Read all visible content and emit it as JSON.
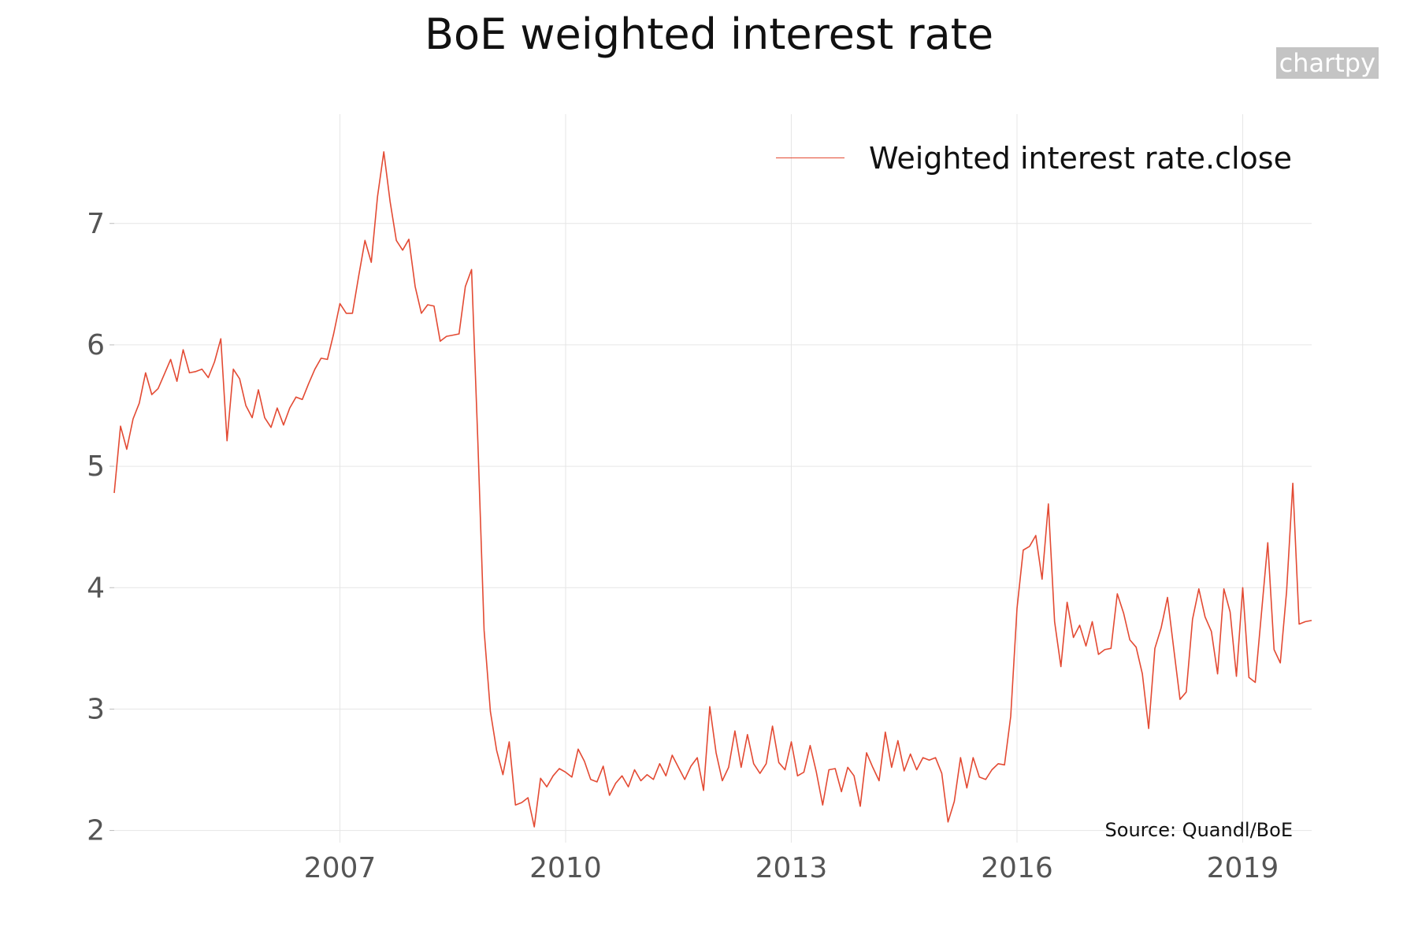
{
  "page": {
    "title": "BoE weighted interest rate",
    "watermark": "chartpy",
    "source": "Source: Quandl/BoE"
  },
  "colors": {
    "series": "#e34a33",
    "grid": "#e6e6e6",
    "axis_text": "#555555",
    "watermark_bg": "#c4c4c4"
  },
  "chart_data": {
    "type": "line",
    "title": "BoE weighted interest rate",
    "xlabel": "",
    "ylabel": "",
    "legend_position": "top-right",
    "grid": true,
    "x_ticks": [
      "2007",
      "2010",
      "2013",
      "2016",
      "2019"
    ],
    "y_ticks": [
      2,
      3,
      4,
      5,
      6,
      7
    ],
    "xlim": [
      "2004-01",
      "2019-12"
    ],
    "ylim": [
      1.9,
      7.9
    ],
    "series": [
      {
        "name": "Weighted interest rate.close",
        "color": "#e34a33",
        "x": [
          "2004-01",
          "2004-02",
          "2004-03",
          "2004-04",
          "2004-05",
          "2004-06",
          "2004-07",
          "2004-08",
          "2004-09",
          "2004-10",
          "2004-11",
          "2004-12",
          "2005-01",
          "2005-02",
          "2005-03",
          "2005-04",
          "2005-05",
          "2005-06",
          "2005-07",
          "2005-08",
          "2005-09",
          "2005-10",
          "2005-11",
          "2005-12",
          "2006-01",
          "2006-02",
          "2006-03",
          "2006-04",
          "2006-05",
          "2006-06",
          "2006-07",
          "2006-08",
          "2006-09",
          "2006-10",
          "2006-11",
          "2006-12",
          "2007-01",
          "2007-02",
          "2007-03",
          "2007-04",
          "2007-05",
          "2007-06",
          "2007-07",
          "2007-08",
          "2007-09",
          "2007-10",
          "2007-11",
          "2007-12",
          "2008-01",
          "2008-02",
          "2008-03",
          "2008-04",
          "2008-05",
          "2008-06",
          "2008-07",
          "2008-08",
          "2008-09",
          "2008-10",
          "2008-11",
          "2008-12",
          "2009-01",
          "2009-02",
          "2009-03",
          "2009-04",
          "2009-05",
          "2009-06",
          "2009-07",
          "2009-08",
          "2009-09",
          "2009-10",
          "2009-11",
          "2009-12",
          "2010-01",
          "2010-02",
          "2010-03",
          "2010-04",
          "2010-05",
          "2010-06",
          "2010-07",
          "2010-08",
          "2010-09",
          "2010-10",
          "2010-11",
          "2010-12",
          "2011-01",
          "2011-02",
          "2011-03",
          "2011-04",
          "2011-05",
          "2011-06",
          "2011-07",
          "2011-08",
          "2011-09",
          "2011-10",
          "2011-11",
          "2011-12",
          "2012-01",
          "2012-02",
          "2012-03",
          "2012-04",
          "2012-05",
          "2012-06",
          "2012-07",
          "2012-08",
          "2012-09",
          "2012-10",
          "2012-11",
          "2012-12",
          "2013-01",
          "2013-02",
          "2013-03",
          "2013-04",
          "2013-05",
          "2013-06",
          "2013-07",
          "2013-08",
          "2013-09",
          "2013-10",
          "2013-11",
          "2013-12",
          "2014-01",
          "2014-02",
          "2014-03",
          "2014-04",
          "2014-05",
          "2014-06",
          "2014-07",
          "2014-08",
          "2014-09",
          "2014-10",
          "2014-11",
          "2014-12",
          "2015-01",
          "2015-02",
          "2015-03",
          "2015-04",
          "2015-05",
          "2015-06",
          "2015-07",
          "2015-08",
          "2015-09",
          "2015-10",
          "2015-11",
          "2015-12",
          "2016-01",
          "2016-02",
          "2016-03",
          "2016-04",
          "2016-05",
          "2016-06",
          "2016-07",
          "2016-08",
          "2016-09",
          "2016-10",
          "2016-11",
          "2016-12",
          "2017-01",
          "2017-02",
          "2017-03",
          "2017-04",
          "2017-05",
          "2017-06",
          "2017-07",
          "2017-08",
          "2017-09",
          "2017-10",
          "2017-11",
          "2017-12",
          "2018-01",
          "2018-02",
          "2018-03",
          "2018-04",
          "2018-05",
          "2018-06",
          "2018-07",
          "2018-08",
          "2018-09",
          "2018-10",
          "2018-11",
          "2018-12",
          "2019-01",
          "2019-02",
          "2019-03",
          "2019-04",
          "2019-05",
          "2019-06",
          "2019-07",
          "2019-08",
          "2019-09",
          "2019-10",
          "2019-11",
          "2019-12"
        ],
        "y": [
          4.78,
          5.33,
          5.14,
          5.39,
          5.52,
          5.77,
          5.59,
          5.64,
          5.76,
          5.88,
          5.7,
          5.96,
          5.77,
          5.78,
          5.8,
          5.73,
          5.86,
          6.05,
          5.21,
          5.8,
          5.72,
          5.5,
          5.4,
          5.63,
          5.4,
          5.32,
          5.48,
          5.34,
          5.48,
          5.57,
          5.55,
          5.68,
          5.8,
          5.89,
          5.88,
          6.09,
          6.34,
          6.26,
          6.26,
          6.57,
          6.86,
          6.68,
          7.22,
          7.59,
          7.18,
          6.86,
          6.78,
          6.87,
          6.48,
          6.26,
          6.33,
          6.32,
          6.03,
          6.07,
          6.08,
          6.09,
          6.48,
          6.62,
          5.2,
          3.65,
          2.98,
          2.66,
          2.46,
          2.73,
          2.21,
          2.23,
          2.27,
          2.03,
          2.43,
          2.36,
          2.45,
          2.51,
          2.48,
          2.44,
          2.67,
          2.57,
          2.42,
          2.4,
          2.53,
          2.29,
          2.39,
          2.45,
          2.36,
          2.5,
          2.41,
          2.46,
          2.42,
          2.55,
          2.45,
          2.62,
          2.52,
          2.42,
          2.53,
          2.6,
          2.33,
          3.02,
          2.64,
          2.41,
          2.52,
          2.82,
          2.52,
          2.79,
          2.55,
          2.47,
          2.55,
          2.86,
          2.56,
          2.5,
          2.73,
          2.45,
          2.48,
          2.7,
          2.48,
          2.21,
          2.5,
          2.51,
          2.32,
          2.52,
          2.45,
          2.2,
          2.64,
          2.52,
          2.41,
          2.81,
          2.52,
          2.74,
          2.49,
          2.63,
          2.5,
          2.6,
          2.58,
          2.6,
          2.47,
          2.07,
          2.24,
          2.6,
          2.35,
          2.6,
          2.44,
          2.42,
          2.5,
          2.55,
          2.54,
          2.94,
          3.83,
          4.31,
          4.34,
          4.43,
          4.07,
          4.69,
          3.72,
          3.35,
          3.88,
          3.59,
          3.69,
          3.52,
          3.72,
          3.45,
          3.49,
          3.5,
          3.95,
          3.79,
          3.57,
          3.51,
          3.29,
          2.84,
          3.5,
          3.67,
          3.92,
          3.5,
          3.08,
          3.14,
          3.74,
          3.99,
          3.76,
          3.64,
          3.29,
          3.99,
          3.8,
          3.27,
          4.0,
          3.26,
          3.22,
          3.79,
          4.37,
          3.49,
          3.38,
          3.97,
          4.86,
          3.7,
          3.72,
          3.73
        ]
      }
    ]
  }
}
